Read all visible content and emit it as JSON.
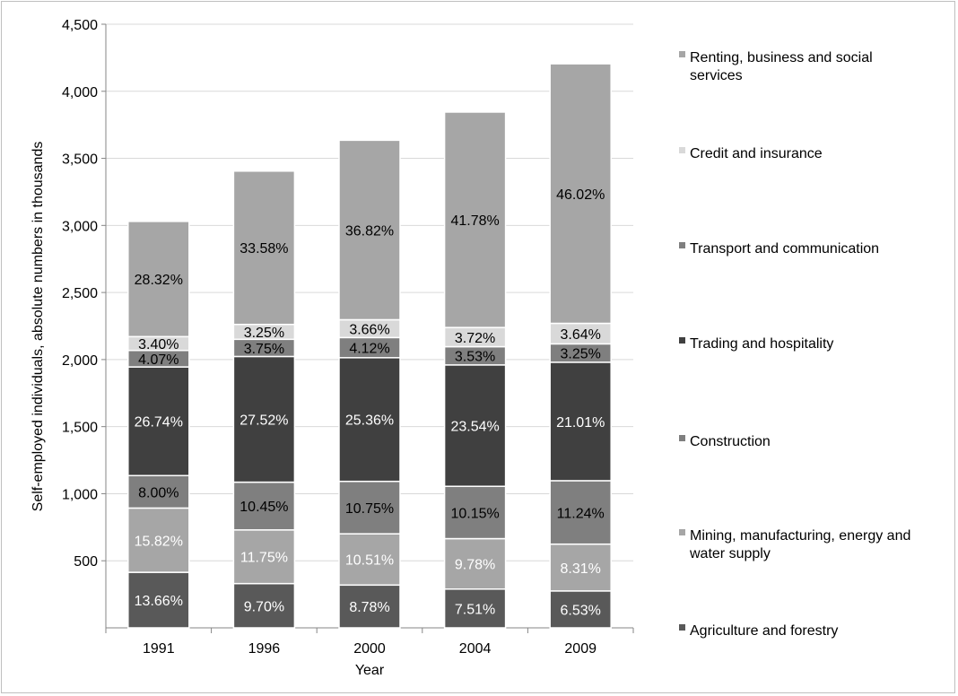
{
  "chart_data": {
    "type": "bar",
    "stacked": true,
    "title": "",
    "xlabel": "Year",
    "ylabel": "Self-employed individuals, absolute numbers in thousands",
    "ylim": [
      0,
      4500
    ],
    "yticks": [
      500,
      1000,
      1500,
      2000,
      2500,
      3000,
      3500,
      4000,
      4500
    ],
    "ytick_labels": [
      "500",
      "1,000",
      "1,500",
      "2,000",
      "2,500",
      "3,000",
      "3,500",
      "4,000",
      "4,500"
    ],
    "categories": [
      "1991",
      "1996",
      "2000",
      "2004",
      "2009"
    ],
    "totals": [
      3030,
      3405,
      3635,
      3845,
      4205
    ],
    "grid": true,
    "legend_position": "right",
    "series": [
      {
        "name": "Agriculture and forestry",
        "color": "#595959",
        "label_color": "#ffffff",
        "values": [
          414,
          330,
          319,
          289,
          275
        ],
        "labels": [
          "13.66%",
          "9.70%",
          "8.78%",
          "7.51%",
          "6.53%"
        ]
      },
      {
        "name": "Mining, manufacturing, energy and water supply",
        "color": "#a6a6a6",
        "label_color": "#ffffff",
        "values": [
          479,
          400,
          382,
          376,
          349
        ],
        "labels": [
          "15.82%",
          "11.75%",
          "10.51%",
          "9.78%",
          "8.31%"
        ]
      },
      {
        "name": "Construction",
        "color": "#7f7f7f",
        "label_color": "#000000",
        "values": [
          242,
          356,
          391,
          390,
          473
        ],
        "labels": [
          "8.00%",
          "10.45%",
          "10.75%",
          "10.15%",
          "11.24%"
        ]
      },
      {
        "name": "Trading and hospitality",
        "color": "#404040",
        "label_color": "#ffffff",
        "values": [
          810,
          937,
          922,
          905,
          883
        ],
        "labels": [
          "26.74%",
          "27.52%",
          "25.36%",
          "23.54%",
          "21.01%"
        ]
      },
      {
        "name": "Transport and communication",
        "color": "#7f7f7f",
        "label_color": "#000000",
        "values": [
          123,
          128,
          150,
          136,
          137
        ],
        "labels": [
          "4.07%",
          "3.75%",
          "4.12%",
          "3.53%",
          "3.25%"
        ]
      },
      {
        "name": "Credit and insurance",
        "color": "#d9d9d9",
        "label_color": "#000000",
        "values": [
          103,
          111,
          133,
          143,
          153
        ],
        "labels": [
          "3.40%",
          "3.25%",
          "3.66%",
          "3.72%",
          "3.64%"
        ]
      },
      {
        "name": "Renting, business and social services",
        "color": "#a6a6a6",
        "label_color": "#000000",
        "values": [
          858,
          1143,
          1338,
          1606,
          1935
        ],
        "labels": [
          "28.32%",
          "33.58%",
          "36.82%",
          "41.78%",
          "46.02%"
        ]
      }
    ]
  }
}
